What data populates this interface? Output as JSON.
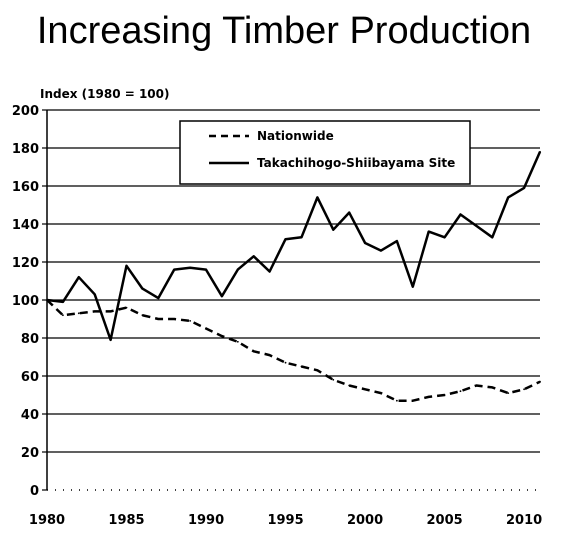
{
  "chart_data": {
    "type": "line",
    "title": "Increasing Timber Production",
    "ylabel": "Index (1980 = 100)",
    "xlabel": "",
    "xlim": [
      1980,
      2011
    ],
    "ylim": [
      0,
      200
    ],
    "yticks": [
      0,
      20,
      40,
      60,
      80,
      100,
      120,
      140,
      160,
      180,
      200
    ],
    "xticks": [
      1980,
      1985,
      1990,
      1995,
      2000,
      2005,
      2010
    ],
    "grid": "horizontal",
    "legend_position": "top-right",
    "series": [
      {
        "name": "Nationwide",
        "style": "dashed",
        "color": "#000000",
        "x": [
          1980,
          1981,
          1982,
          1983,
          1984,
          1985,
          1986,
          1987,
          1988,
          1989,
          1990,
          1991,
          1992,
          1993,
          1994,
          1995,
          1996,
          1997,
          1998,
          1999,
          2000,
          2001,
          2002,
          2003,
          2004,
          2005,
          2006,
          2007,
          2008,
          2009,
          2010,
          2011
        ],
        "values": [
          100,
          92,
          93,
          94,
          94,
          96,
          92,
          90,
          90,
          89,
          85,
          81,
          78,
          73,
          71,
          67,
          65,
          63,
          58,
          55,
          53,
          51,
          47,
          47,
          49,
          50,
          52,
          55,
          54,
          51,
          53,
          57
        ]
      },
      {
        "name": "Takachihogo-Shiibayama Site",
        "style": "solid",
        "color": "#000000",
        "x": [
          1980,
          1981,
          1982,
          1983,
          1984,
          1985,
          1986,
          1987,
          1988,
          1989,
          1990,
          1991,
          1992,
          1993,
          1994,
          1995,
          1996,
          1997,
          1998,
          1999,
          2000,
          2001,
          2002,
          2003,
          2004,
          2005,
          2006,
          2007,
          2008,
          2009,
          2010,
          2011
        ],
        "values": [
          100,
          99,
          112,
          103,
          79,
          118,
          106,
          101,
          116,
          117,
          116,
          102,
          116,
          123,
          115,
          132,
          133,
          154,
          137,
          146,
          130,
          126,
          131,
          107,
          136,
          133,
          145,
          139,
          133,
          154,
          159,
          178
        ]
      }
    ]
  }
}
